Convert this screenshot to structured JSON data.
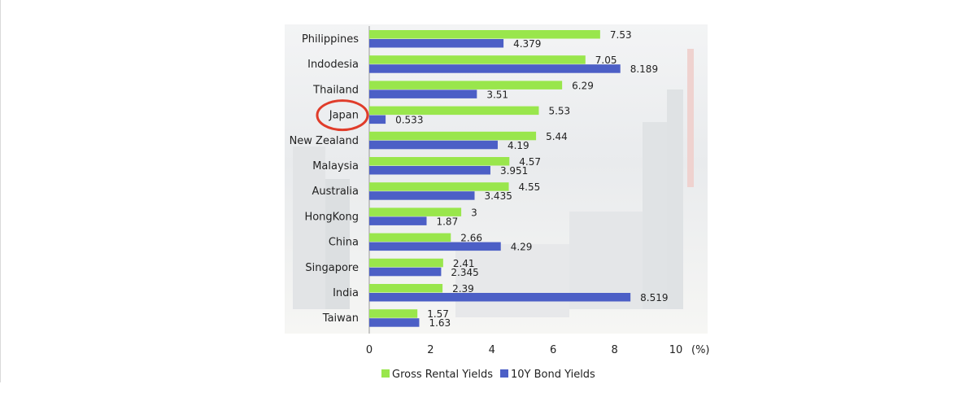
{
  "chart_data": {
    "type": "bar",
    "orientation": "horizontal",
    "categories": [
      "Philippines",
      "Indodesia",
      "Thailand",
      "Japan",
      "New  Zealand",
      "Malaysia",
      "Australia",
      "HongKong",
      "China",
      "Singapore",
      "India",
      "Taiwan"
    ],
    "series": [
      {
        "name": "Gross Rental Yields",
        "color": "#99e64c",
        "values": [
          7.53,
          7.05,
          6.29,
          5.53,
          5.44,
          4.57,
          4.55,
          3,
          2.66,
          2.41,
          2.39,
          1.57
        ],
        "labels": [
          "7.53",
          "7.05",
          "6.29",
          "5.53",
          "5.44",
          "4.57",
          "4.55",
          "3",
          "2.66",
          "2.41",
          "2.39",
          "1.57"
        ]
      },
      {
        "name": "10Y Bond Yields",
        "color": "#4c5fc6",
        "values": [
          4.379,
          8.189,
          3.51,
          0.533,
          4.19,
          3.951,
          3.435,
          1.87,
          4.29,
          2.345,
          8.519,
          1.63
        ],
        "labels": [
          "4.379",
          "8.189",
          "3.51",
          "0.533",
          "4.19",
          "3.951",
          "3.435",
          "1.87",
          "4.29",
          "2.345",
          "8.519",
          "1.63"
        ]
      }
    ],
    "xlim": [
      0,
      10
    ],
    "xticks": [
      "0",
      "2",
      "4",
      "6",
      "8",
      "10"
    ],
    "x_unit": "(%)",
    "highlighted_category": "Japan",
    "highlight_color": "#e03c2a",
    "legend_position": "bottom",
    "grid": false
  }
}
